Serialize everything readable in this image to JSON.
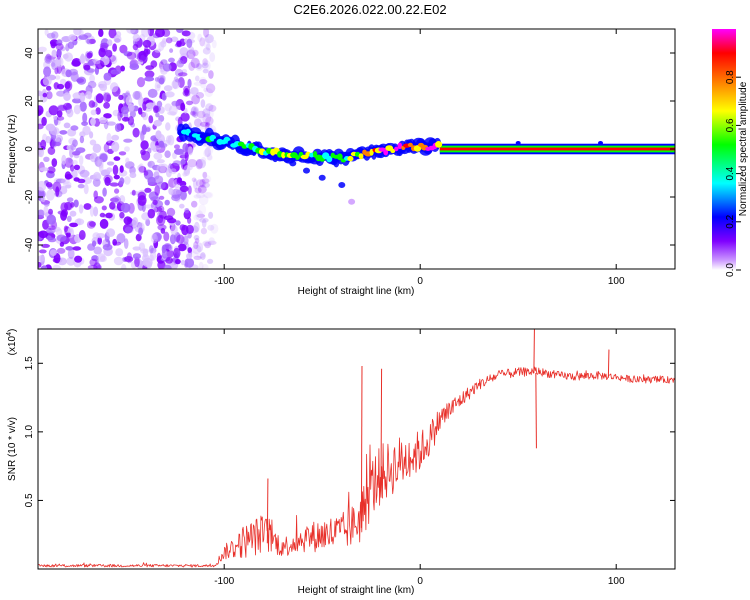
{
  "title": "C2E6.2026.022.00.22.E02",
  "chart_data": [
    {
      "type": "heatmap",
      "title": "C2E6.2026.022.00.22.E02",
      "xlabel": "Height of straight line (km)",
      "ylabel": "Frequency (Hz)",
      "xlim": [
        -195,
        130
      ],
      "ylim": [
        -50,
        50
      ],
      "x_ticks": [
        -100,
        0,
        100
      ],
      "x_tick_labels": [
        "-100",
        "0",
        "100"
      ],
      "y_ticks": [
        -40,
        -20,
        0,
        20,
        40
      ],
      "y_tick_labels": [
        "-40",
        "-20",
        "0",
        "20",
        "40"
      ],
      "colorbar": {
        "label": "Normalized spectral amplitude",
        "range": [
          0,
          1
        ],
        "ticks": [
          0.0,
          0.2,
          0.4,
          0.6,
          0.8
        ],
        "tick_labels": [
          "0.0",
          "0.2",
          "0.4",
          "0.6",
          "0.8"
        ],
        "colors": [
          "#ffffff",
          "#cc99ff",
          "#7f00ff",
          "#0000ff",
          "#00ffff",
          "#00ff00",
          "#ffff00",
          "#ff7f00",
          "#ff0000",
          "#ff00ff"
        ]
      },
      "noise_region_x": [
        -195,
        -105
      ],
      "signal_track": {
        "x": [
          -122,
          -110,
          -100,
          -90,
          -80,
          -70,
          -60,
          -50,
          -40,
          -30,
          -20,
          -10,
          0,
          10,
          20,
          50,
          90,
          130
        ],
        "freq": [
          7,
          5,
          3,
          1,
          -1,
          -2,
          -3,
          -3,
          -4,
          -2,
          -1,
          1,
          1,
          1,
          0,
          0,
          0,
          0
        ],
        "amp": [
          0.35,
          0.4,
          0.45,
          0.5,
          0.55,
          0.6,
          0.6,
          0.55,
          0.5,
          0.7,
          0.85,
          0.9,
          0.9,
          0.9,
          1.0,
          1.0,
          1.0,
          1.0
        ]
      },
      "secondary_track": {
        "x": [
          -65,
          -58,
          -50,
          -40,
          -35
        ],
        "freq": [
          -6,
          -9,
          -12,
          -15,
          -22
        ]
      }
    },
    {
      "type": "line",
      "title": "",
      "xlabel": "Height of straight line (km)",
      "ylabel": "SNR (10 * v/v)",
      "multiplier_label": "(x10",
      "multiplier_exp": "4",
      "xlim": [
        -195,
        130
      ],
      "ylim": [
        0,
        1.75
      ],
      "x_ticks": [
        -100,
        0,
        100
      ],
      "x_tick_labels": [
        "-100",
        "0",
        "100"
      ],
      "y_ticks": [
        0.5,
        1.0,
        1.5
      ],
      "y_tick_labels": [
        "0.5",
        "1.0",
        "1.5"
      ],
      "color": "#e8302a",
      "envelope": {
        "x": [
          -195,
          -105,
          -100,
          -90,
          -80,
          -75,
          -70,
          -60,
          -50,
          -40,
          -35,
          -30,
          -25,
          -20,
          -15,
          -10,
          -5,
          0,
          5,
          10,
          20,
          30,
          40,
          50,
          60,
          70,
          80,
          90,
          100,
          110,
          120,
          130
        ],
        "base": [
          0.02,
          0.02,
          0.1,
          0.15,
          0.2,
          0.17,
          0.13,
          0.18,
          0.2,
          0.2,
          0.25,
          0.3,
          0.5,
          0.6,
          0.65,
          0.7,
          0.75,
          0.8,
          0.9,
          1.05,
          1.2,
          1.33,
          1.4,
          1.42,
          1.43,
          1.4,
          1.39,
          1.4,
          1.39,
          1.37,
          1.37,
          1.37
        ],
        "spread": [
          0.02,
          0.02,
          0.1,
          0.25,
          0.3,
          0.2,
          0.15,
          0.2,
          0.25,
          0.3,
          0.3,
          0.4,
          0.45,
          0.45,
          0.4,
          0.4,
          0.35,
          0.3,
          0.25,
          0.2,
          0.12,
          0.08,
          0.07,
          0.07,
          0.06,
          0.06,
          0.06,
          0.06,
          0.05,
          0.05,
          0.05,
          0.05
        ]
      },
      "spikes": [
        {
          "x": -78,
          "y": 0.66
        },
        {
          "x": -30,
          "y": 1.48
        },
        {
          "x": -20,
          "y": 1.46
        },
        {
          "x": 58,
          "y": 1.78
        },
        {
          "x": 59,
          "y": 0.88
        },
        {
          "x": 96,
          "y": 1.6
        }
      ]
    }
  ]
}
